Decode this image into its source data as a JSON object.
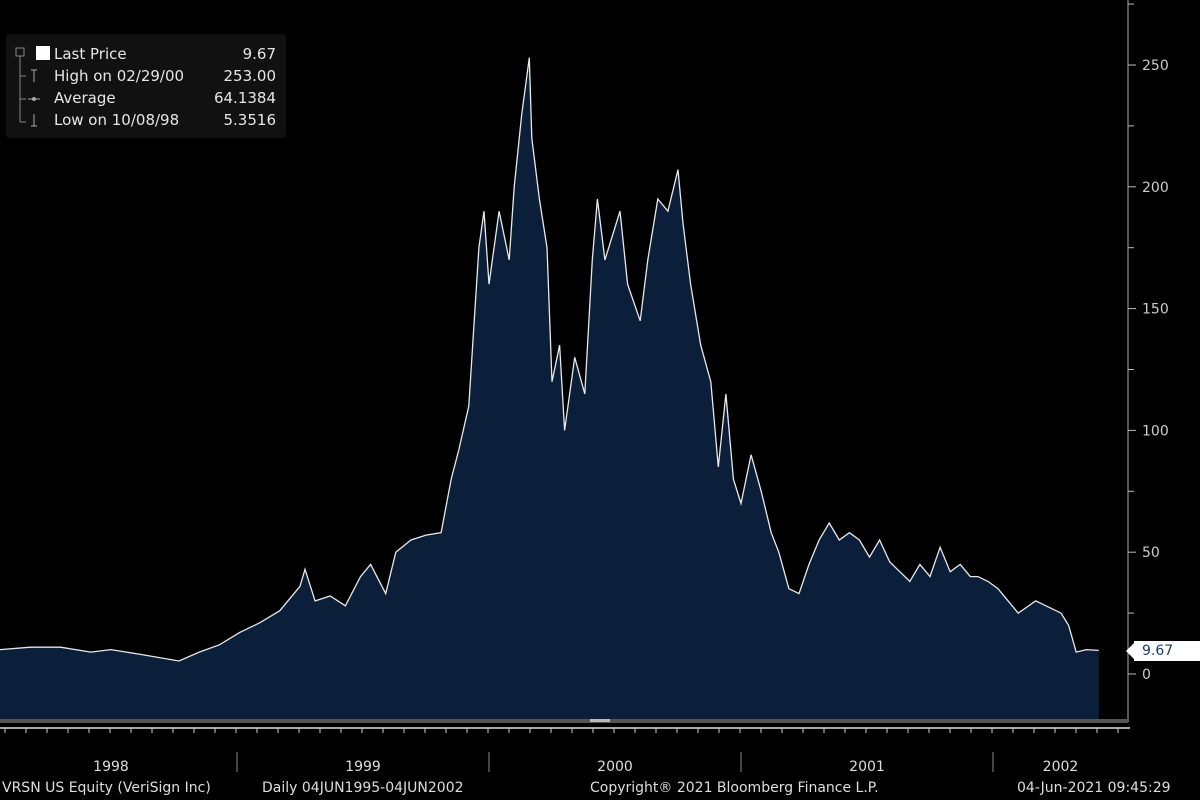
{
  "legend": {
    "items": [
      {
        "label": "Last Price",
        "value": "9.67"
      },
      {
        "label": "High on 02/29/00",
        "value": "253.00"
      },
      {
        "label": "Average",
        "value": "64.1384"
      },
      {
        "label": "Low on 10/08/98",
        "value": "5.3516"
      }
    ]
  },
  "last_price_tag": "9.67",
  "footer": {
    "security": "VRSN US Equity (VeriSign Inc)",
    "range": "Daily 04JUN1995-04JUN2002",
    "copyright": "Copyright® 2021 Bloomberg Finance L.P.",
    "timestamp": "04-Jun-2021 09:45:29"
  },
  "colors": {
    "fill": "#0b1f3b",
    "line": "#e8e8e8",
    "background": "#000000"
  },
  "chart_data": {
    "type": "area",
    "title": "VRSN US Equity (VeriSign Inc) Last Price",
    "xlabel": "",
    "ylabel": "",
    "ylim": [
      0,
      250
    ],
    "yticks": [
      0,
      50,
      100,
      150,
      200,
      250
    ],
    "xticks": [
      "1998",
      "1999",
      "2000",
      "2001",
      "2002"
    ],
    "xlim": [
      1998.0,
      2002.45
    ],
    "x": [
      1998.06,
      1998.18,
      1998.3,
      1998.42,
      1998.5,
      1998.62,
      1998.77,
      1998.85,
      1998.93,
      1999.01,
      1999.09,
      1999.17,
      1999.25,
      1999.27,
      1999.31,
      1999.37,
      1999.43,
      1999.49,
      1999.53,
      1999.59,
      1999.63,
      1999.69,
      1999.75,
      1999.81,
      1999.85,
      1999.88,
      1999.92,
      1999.96,
      1999.98,
      2000.0,
      2000.04,
      2000.08,
      2000.1,
      2000.13,
      2000.16,
      2000.17,
      2000.2,
      2000.23,
      2000.25,
      2000.28,
      2000.3,
      2000.34,
      2000.38,
      2000.41,
      2000.43,
      2000.46,
      2000.49,
      2000.52,
      2000.55,
      2000.6,
      2000.63,
      2000.67,
      2000.71,
      2000.75,
      2000.77,
      2000.8,
      2000.84,
      2000.88,
      2000.91,
      2000.94,
      2000.97,
      2001.0,
      2001.04,
      2001.08,
      2001.12,
      2001.15,
      2001.19,
      2001.23,
      2001.27,
      2001.31,
      2001.35,
      2001.39,
      2001.43,
      2001.47,
      2001.51,
      2001.55,
      2001.59,
      2001.63,
      2001.67,
      2001.71,
      2001.75,
      2001.79,
      2001.83,
      2001.87,
      2001.91,
      2001.94,
      2001.98,
      2002.02,
      2002.06,
      2002.1,
      2002.17,
      2002.21,
      2002.27,
      2002.3,
      2002.33,
      2002.37,
      2002.42
    ],
    "values": [
      10,
      11,
      11,
      9,
      10,
      8,
      5.35,
      9,
      12,
      17,
      21,
      26,
      36,
      43,
      30,
      32,
      28,
      40,
      45,
      33,
      50,
      55,
      57,
      58,
      80,
      92,
      110,
      175,
      190,
      160,
      190,
      170,
      200,
      230,
      253,
      220,
      195,
      175,
      120,
      135,
      100,
      130,
      115,
      170,
      195,
      170,
      180,
      190,
      160,
      145,
      170,
      195,
      190,
      207,
      185,
      160,
      135,
      120,
      85,
      115,
      80,
      70,
      90,
      75,
      58,
      50,
      35,
      33,
      45,
      55,
      62,
      55,
      58,
      55,
      48,
      55,
      46,
      42,
      38,
      45,
      40,
      52,
      42,
      45,
      40,
      40,
      38,
      35,
      30,
      25,
      30,
      28,
      25,
      20,
      9,
      10,
      9.67
    ],
    "legend": {
      "placement": "top-left"
    },
    "grid": false
  }
}
